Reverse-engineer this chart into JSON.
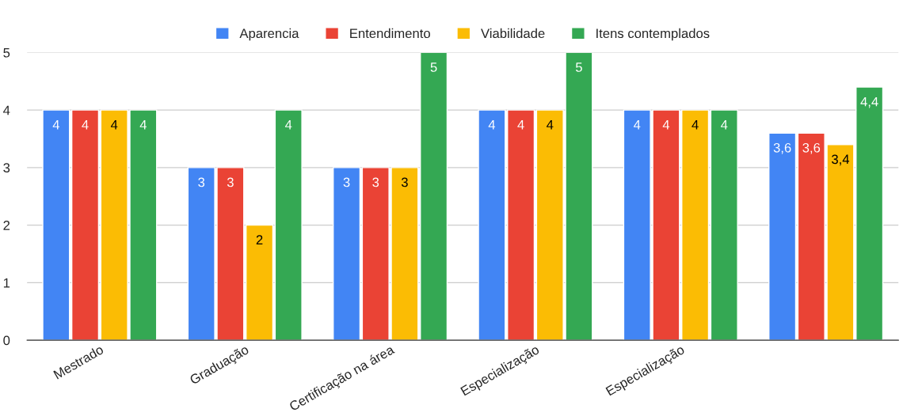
{
  "chart_data": {
    "type": "bar",
    "categories": [
      "Mestrado",
      "Graduação",
      "Certificação na área",
      "Especialização",
      "Especialização",
      null
    ],
    "series": [
      {
        "name": "Aparencia",
        "color": "#4285f4",
        "values": [
          4,
          3,
          3,
          4,
          4,
          3.6
        ],
        "value_labels": [
          "4",
          "3",
          "3",
          "4",
          "4",
          "3,6"
        ]
      },
      {
        "name": "Entendimento",
        "color": "#ea4335",
        "values": [
          4,
          3,
          3,
          4,
          4,
          3.6
        ],
        "value_labels": [
          "4",
          "3",
          "3",
          "4",
          "4",
          "3,6"
        ]
      },
      {
        "name": "Viabilidade",
        "color": "#fbbc04",
        "values": [
          4,
          2,
          3,
          4,
          4,
          3.4
        ],
        "value_labels": [
          "4",
          "2",
          "3",
          "4",
          "4",
          "3,4"
        ]
      },
      {
        "name": "Itens contemplados",
        "color": "#34a853",
        "values": [
          4,
          4,
          5,
          5,
          4,
          4.4
        ],
        "value_labels": [
          "4",
          "4",
          "5",
          "5",
          "4",
          "4,4"
        ]
      }
    ],
    "ylim": [
      0,
      5
    ],
    "yticks": [
      0,
      1,
      2,
      3,
      4,
      5
    ],
    "grid": "y",
    "legend": "top"
  }
}
